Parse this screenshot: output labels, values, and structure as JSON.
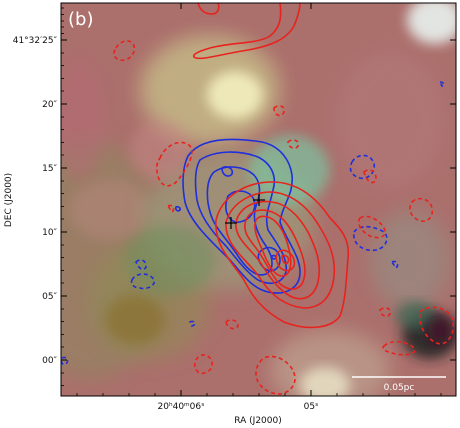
{
  "panel": {
    "label": "(b)"
  },
  "axes": {
    "xlabel": "RA (J2000)",
    "ylabel": "DEC (J2000)",
    "x_ticks": [
      {
        "label": "20ʰ40ᵐ06ˢ"
      },
      {
        "label": "05ˢ"
      }
    ],
    "y_ticks": [
      {
        "label": "41°32′25″"
      },
      {
        "label": "20″"
      },
      {
        "label": "15″"
      },
      {
        "label": "10″"
      },
      {
        "label": "05″"
      },
      {
        "label": "00″"
      }
    ]
  },
  "scalebar": {
    "label": "0.05pc"
  },
  "colors": {
    "blue_contours": "#1f2fdc",
    "red_contours": "#e8231e",
    "background_base": "#a9706c",
    "crosses": "#000000"
  }
}
